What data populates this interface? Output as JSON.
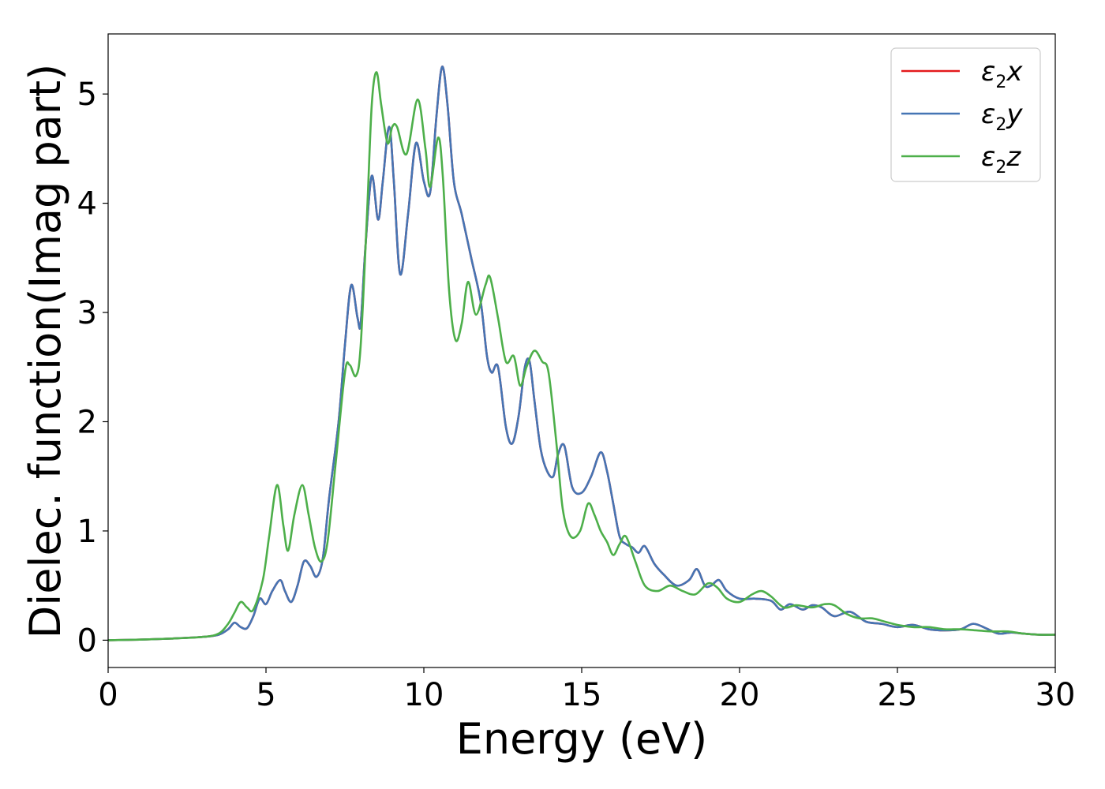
{
  "chart_data": {
    "type": "line",
    "title": "",
    "xlabel": "Energy (eV)",
    "ylabel": "Dielec. function(Imag part)",
    "xlim": [
      0,
      30
    ],
    "ylim": [
      -0.25,
      5.55
    ],
    "xticks": [
      0,
      5,
      10,
      15,
      20,
      25,
      30
    ],
    "yticks": [
      0,
      1,
      2,
      3,
      4,
      5
    ],
    "grid": false,
    "legend_position": "top-right",
    "series": [
      {
        "name": "ε2x",
        "legend_main": "ε",
        "legend_sub": "2",
        "legend_var": "x",
        "color": "#e41a1c",
        "x": [
          0,
          1,
          2,
          3,
          3.5,
          3.8,
          4.0,
          4.2,
          4.4,
          4.6,
          4.8,
          5.0,
          5.2,
          5.45,
          5.6,
          5.8,
          6.0,
          6.2,
          6.4,
          6.6,
          6.8,
          7.0,
          7.3,
          7.5,
          7.7,
          7.9,
          8.0,
          8.15,
          8.35,
          8.55,
          8.7,
          8.9,
          9.05,
          9.25,
          9.5,
          9.75,
          10.0,
          10.2,
          10.4,
          10.58,
          10.75,
          10.95,
          11.2,
          11.5,
          11.8,
          12.0,
          12.15,
          12.35,
          12.6,
          12.8,
          13.0,
          13.2,
          13.35,
          13.5,
          13.7,
          13.9,
          14.1,
          14.25,
          14.45,
          14.7,
          15.0,
          15.3,
          15.6,
          15.8,
          16.0,
          16.2,
          16.4,
          16.6,
          16.8,
          17.0,
          17.3,
          17.6,
          18.0,
          18.4,
          18.65,
          18.9,
          19.1,
          19.35,
          19.6,
          20.0,
          20.5,
          21.0,
          21.3,
          21.6,
          22.0,
          22.3,
          22.6,
          23.0,
          23.5,
          24.0,
          24.5,
          25.0,
          25.5,
          26.0,
          26.5,
          27.0,
          27.4,
          27.8,
          28.2,
          28.6,
          29.0,
          29.5,
          30.0
        ],
        "y": [
          0.0,
          0.005,
          0.015,
          0.03,
          0.05,
          0.1,
          0.16,
          0.12,
          0.11,
          0.22,
          0.38,
          0.33,
          0.45,
          0.55,
          0.45,
          0.35,
          0.5,
          0.72,
          0.68,
          0.58,
          0.75,
          1.3,
          2.0,
          2.7,
          3.25,
          2.95,
          2.9,
          3.6,
          4.25,
          3.85,
          4.2,
          4.7,
          4.2,
          3.35,
          3.9,
          4.55,
          4.2,
          4.1,
          4.8,
          5.25,
          4.9,
          4.2,
          3.9,
          3.5,
          3.1,
          2.6,
          2.45,
          2.5,
          1.95,
          1.8,
          2.05,
          2.5,
          2.55,
          2.2,
          1.75,
          1.55,
          1.5,
          1.7,
          1.78,
          1.4,
          1.35,
          1.5,
          1.72,
          1.55,
          1.25,
          0.95,
          0.88,
          0.85,
          0.8,
          0.86,
          0.7,
          0.6,
          0.5,
          0.55,
          0.65,
          0.5,
          0.5,
          0.55,
          0.45,
          0.38,
          0.38,
          0.36,
          0.28,
          0.33,
          0.28,
          0.32,
          0.3,
          0.22,
          0.26,
          0.17,
          0.15,
          0.12,
          0.14,
          0.1,
          0.09,
          0.1,
          0.15,
          0.11,
          0.06,
          0.07,
          0.06,
          0.05,
          0.05
        ]
      },
      {
        "name": "ε2y",
        "legend_main": "ε",
        "legend_sub": "2",
        "legend_var": "y",
        "color": "#4575b4",
        "x": [
          0,
          1,
          2,
          3,
          3.5,
          3.8,
          4.0,
          4.2,
          4.4,
          4.6,
          4.8,
          5.0,
          5.2,
          5.45,
          5.6,
          5.8,
          6.0,
          6.2,
          6.4,
          6.6,
          6.8,
          7.0,
          7.3,
          7.5,
          7.7,
          7.9,
          8.0,
          8.15,
          8.35,
          8.55,
          8.7,
          8.9,
          9.05,
          9.25,
          9.5,
          9.75,
          10.0,
          10.2,
          10.4,
          10.58,
          10.75,
          10.95,
          11.2,
          11.5,
          11.8,
          12.0,
          12.15,
          12.35,
          12.6,
          12.8,
          13.0,
          13.2,
          13.35,
          13.5,
          13.7,
          13.9,
          14.1,
          14.25,
          14.45,
          14.7,
          15.0,
          15.3,
          15.6,
          15.8,
          16.0,
          16.2,
          16.4,
          16.6,
          16.8,
          17.0,
          17.3,
          17.6,
          18.0,
          18.4,
          18.65,
          18.9,
          19.1,
          19.35,
          19.6,
          20.0,
          20.5,
          21.0,
          21.3,
          21.6,
          22.0,
          22.3,
          22.6,
          23.0,
          23.5,
          24.0,
          24.5,
          25.0,
          25.5,
          26.0,
          26.5,
          27.0,
          27.4,
          27.8,
          28.2,
          28.6,
          29.0,
          29.5,
          30.0
        ],
        "y": [
          0.0,
          0.005,
          0.015,
          0.03,
          0.05,
          0.1,
          0.16,
          0.12,
          0.11,
          0.22,
          0.38,
          0.33,
          0.45,
          0.55,
          0.45,
          0.35,
          0.5,
          0.72,
          0.68,
          0.58,
          0.75,
          1.3,
          2.0,
          2.7,
          3.25,
          2.95,
          2.9,
          3.6,
          4.25,
          3.85,
          4.2,
          4.7,
          4.2,
          3.35,
          3.9,
          4.55,
          4.2,
          4.1,
          4.8,
          5.25,
          4.9,
          4.2,
          3.9,
          3.5,
          3.1,
          2.6,
          2.45,
          2.5,
          1.95,
          1.8,
          2.05,
          2.5,
          2.55,
          2.2,
          1.75,
          1.55,
          1.5,
          1.7,
          1.78,
          1.4,
          1.35,
          1.5,
          1.72,
          1.55,
          1.25,
          0.95,
          0.88,
          0.85,
          0.8,
          0.86,
          0.7,
          0.6,
          0.5,
          0.55,
          0.65,
          0.5,
          0.5,
          0.55,
          0.45,
          0.38,
          0.38,
          0.36,
          0.28,
          0.33,
          0.28,
          0.32,
          0.3,
          0.22,
          0.26,
          0.17,
          0.15,
          0.12,
          0.14,
          0.1,
          0.09,
          0.1,
          0.15,
          0.11,
          0.06,
          0.07,
          0.06,
          0.05,
          0.05
        ]
      },
      {
        "name": "ε2z",
        "legend_main": "ε",
        "legend_sub": "2",
        "legend_var": "z",
        "color": "#4daf4a",
        "x": [
          0,
          1,
          2,
          3,
          3.5,
          3.8,
          4.0,
          4.2,
          4.4,
          4.6,
          4.9,
          5.1,
          5.35,
          5.55,
          5.7,
          5.9,
          6.15,
          6.35,
          6.55,
          6.75,
          6.95,
          7.2,
          7.5,
          7.65,
          7.85,
          8.0,
          8.2,
          8.35,
          8.5,
          8.65,
          8.85,
          9.0,
          9.15,
          9.45,
          9.8,
          10.05,
          10.2,
          10.45,
          10.6,
          10.8,
          11.0,
          11.2,
          11.4,
          11.65,
          11.95,
          12.1,
          12.35,
          12.6,
          12.85,
          13.05,
          13.25,
          13.5,
          13.75,
          13.95,
          14.2,
          14.4,
          14.65,
          14.95,
          15.2,
          15.4,
          15.6,
          15.8,
          16.0,
          16.2,
          16.4,
          16.7,
          17.0,
          17.4,
          17.8,
          18.2,
          18.6,
          19.0,
          19.3,
          19.6,
          20.0,
          20.4,
          20.7,
          21.0,
          21.4,
          21.8,
          22.3,
          22.7,
          23.0,
          23.4,
          23.8,
          24.2,
          24.6,
          25.0,
          25.5,
          26.0,
          26.5,
          27.0,
          27.5,
          28.0,
          28.5,
          29.0,
          29.5,
          30.0
        ],
        "y": [
          0.0,
          0.005,
          0.015,
          0.03,
          0.06,
          0.15,
          0.25,
          0.35,
          0.3,
          0.28,
          0.55,
          0.95,
          1.42,
          1.05,
          0.82,
          1.15,
          1.42,
          1.15,
          0.85,
          0.72,
          0.9,
          1.6,
          2.45,
          2.52,
          2.42,
          2.7,
          3.9,
          4.9,
          5.2,
          4.9,
          4.55,
          4.7,
          4.7,
          4.45,
          4.95,
          4.5,
          4.15,
          4.6,
          4.25,
          3.2,
          2.75,
          2.9,
          3.28,
          2.98,
          3.25,
          3.32,
          2.95,
          2.55,
          2.6,
          2.33,
          2.5,
          2.65,
          2.55,
          2.45,
          1.8,
          1.2,
          0.95,
          1.0,
          1.25,
          1.15,
          1.0,
          0.9,
          0.78,
          0.88,
          0.95,
          0.72,
          0.5,
          0.45,
          0.5,
          0.45,
          0.42,
          0.52,
          0.48,
          0.38,
          0.35,
          0.42,
          0.45,
          0.4,
          0.3,
          0.32,
          0.3,
          0.33,
          0.32,
          0.24,
          0.2,
          0.2,
          0.17,
          0.14,
          0.12,
          0.12,
          0.1,
          0.1,
          0.09,
          0.08,
          0.08,
          0.06,
          0.05,
          0.05
        ]
      }
    ]
  }
}
